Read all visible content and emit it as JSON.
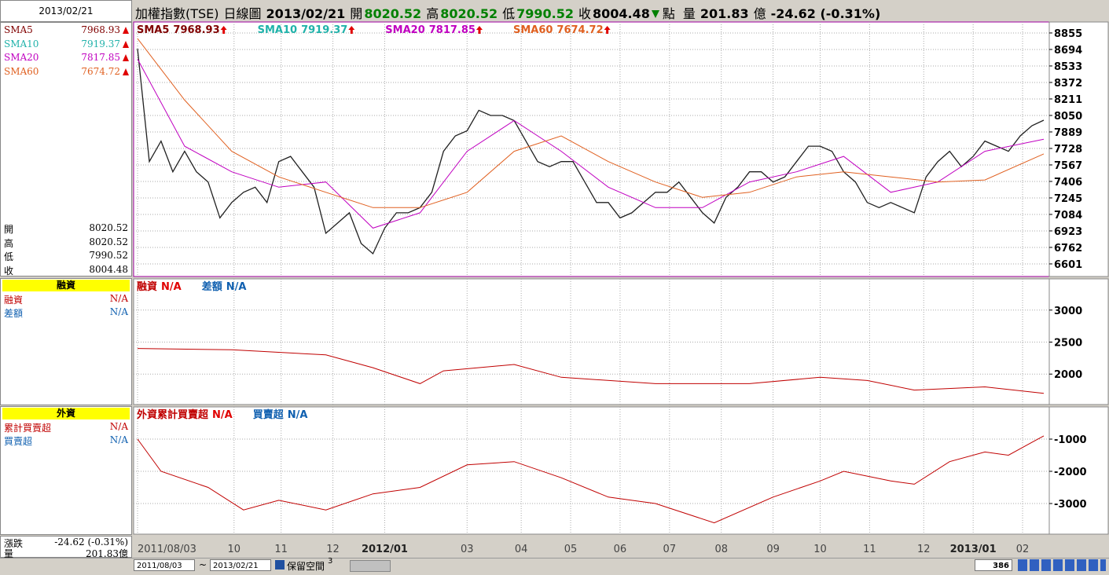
{
  "header": {
    "left_date": "2013/02/21",
    "title": "加權指數(TSE)",
    "period": "日線圖",
    "date": "2013/02/21",
    "fields": [
      {
        "label": "開",
        "value": "8020.52"
      },
      {
        "label": "高",
        "value": "8020.52"
      },
      {
        "label": "低",
        "value": "7990.52"
      },
      {
        "label": "收",
        "value": "8004.48"
      }
    ],
    "unit": "點",
    "volume_label": "量",
    "volume": "201.83",
    "volume_unit": "億",
    "change": "-24.62 (-0.31%)"
  },
  "left_panel": {
    "sma": [
      {
        "name": "SMA5",
        "value": "7968.93",
        "color": "#800000"
      },
      {
        "name": "SMA10",
        "value": "7919.37",
        "color": "#20b2aa"
      },
      {
        "name": "SMA20",
        "value": "7817.85",
        "color": "#c000c0"
      },
      {
        "name": "SMA60",
        "value": "7674.72",
        "color": "#e06020"
      }
    ],
    "ohlc": [
      {
        "label": "開",
        "value": "8020.52"
      },
      {
        "label": "高",
        "value": "8020.52"
      },
      {
        "label": "低",
        "value": "7990.52"
      },
      {
        "label": "收",
        "value": "8004.48"
      }
    ],
    "margin": {
      "title": "融資",
      "rows": [
        {
          "label": "融資",
          "value": "N/A",
          "color": "#c00000"
        },
        {
          "label": "差額",
          "value": "N/A",
          "color": "#1060b0"
        }
      ]
    },
    "foreign": {
      "title": "外資",
      "rows": [
        {
          "label": "累計買賣超",
          "value": "N/A",
          "color": "#c00000"
        },
        {
          "label": "買賣超",
          "value": "N/A",
          "color": "#1060b0"
        }
      ]
    },
    "bottom": [
      {
        "label": "漲跌",
        "value": "-24.62 (-0.31%)"
      },
      {
        "label": "量",
        "value": "201.83億"
      }
    ]
  },
  "toolbar": {
    "from": "2011/08/03",
    "sep": "~",
    "to": "2013/02/21",
    "keep_label": "保留空間",
    "keep_value": "3",
    "count": "386"
  },
  "chart_data": [
    {
      "type": "line",
      "ylim": [
        6478,
        8962
      ],
      "yticks": [
        6601,
        6762,
        6923,
        7084,
        7245,
        7406,
        7567,
        7728,
        7889,
        8050,
        8211,
        8372,
        8533,
        8694,
        8855
      ],
      "xlim": [
        0,
        385
      ],
      "xticks": [
        {
          "value": 0,
          "label": "2011/08/03"
        },
        {
          "value": 41,
          "label": "10"
        },
        {
          "value": 61,
          "label": "11"
        },
        {
          "value": 83,
          "label": "12"
        },
        {
          "value": 105,
          "label": "2012/01"
        },
        {
          "value": 140,
          "label": "03"
        },
        {
          "value": 163,
          "label": "04"
        },
        {
          "value": 184,
          "label": "05"
        },
        {
          "value": 205,
          "label": "06"
        },
        {
          "value": 226,
          "label": "07"
        },
        {
          "value": 248,
          "label": "08"
        },
        {
          "value": 270,
          "label": "09"
        },
        {
          "value": 290,
          "label": "10"
        },
        {
          "value": 311,
          "label": "11"
        },
        {
          "value": 334,
          "label": "12"
        },
        {
          "value": 355,
          "label": "2013/01"
        },
        {
          "value": 376,
          "label": "02"
        }
      ],
      "grid": true,
      "close": {
        "color": "#202020",
        "x": [
          0,
          5,
          10,
          15,
          20,
          25,
          30,
          35,
          40,
          45,
          50,
          55,
          60,
          65,
          70,
          75,
          80,
          85,
          90,
          95,
          100,
          105,
          110,
          115,
          120,
          125,
          130,
          135,
          140,
          145,
          150,
          155,
          160,
          165,
          170,
          175,
          180,
          185,
          190,
          195,
          200,
          205,
          210,
          215,
          220,
          225,
          230,
          235,
          240,
          245,
          250,
          255,
          260,
          265,
          270,
          275,
          280,
          285,
          290,
          295,
          300,
          305,
          310,
          315,
          320,
          325,
          330,
          335,
          340,
          345,
          350,
          355,
          360,
          365,
          370,
          375,
          380,
          385
        ],
        "values": [
          8700,
          7600,
          7800,
          7500,
          7700,
          7500,
          7400,
          7050,
          7200,
          7300,
          7350,
          7200,
          7600,
          7650,
          7500,
          7350,
          6900,
          7000,
          7100,
          6800,
          6700,
          6950,
          7100,
          7100,
          7150,
          7300,
          7700,
          7850,
          7900,
          8100,
          8050,
          8050,
          8000,
          7800,
          7600,
          7550,
          7600,
          7600,
          7400,
          7200,
          7200,
          7050,
          7100,
          7200,
          7300,
          7300,
          7400,
          7250,
          7100,
          7000,
          7250,
          7350,
          7500,
          7500,
          7400,
          7450,
          7600,
          7750,
          7750,
          7700,
          7500,
          7400,
          7200,
          7150,
          7200,
          7150,
          7100,
          7450,
          7600,
          7700,
          7550,
          7650,
          7800,
          7750,
          7700,
          7850,
          7950,
          8004
        ]
      },
      "series": [
        {
          "name": "SMA5",
          "value_label": "7968.93",
          "color": "#800000"
        },
        {
          "name": "SMA10",
          "value_label": "7919.37",
          "color": "#20b2aa"
        },
        {
          "name": "SMA20",
          "value_label": "7817.85",
          "color": "#c000c0",
          "x": [
            0,
            20,
            40,
            60,
            80,
            100,
            120,
            140,
            160,
            180,
            200,
            220,
            240,
            260,
            280,
            300,
            320,
            340,
            360,
            385
          ],
          "values": [
            8600,
            7750,
            7500,
            7350,
            7400,
            6950,
            7100,
            7700,
            8000,
            7700,
            7350,
            7150,
            7150,
            7400,
            7500,
            7650,
            7300,
            7400,
            7700,
            7818
          ]
        },
        {
          "name": "SMA60",
          "value_label": "7674.72",
          "color": "#e06020",
          "x": [
            0,
            20,
            40,
            60,
            80,
            100,
            120,
            140,
            160,
            180,
            200,
            220,
            240,
            260,
            280,
            300,
            320,
            340,
            360,
            385
          ],
          "values": [
            8800,
            8200,
            7700,
            7450,
            7300,
            7150,
            7150,
            7300,
            7700,
            7850,
            7600,
            7400,
            7250,
            7300,
            7450,
            7500,
            7450,
            7400,
            7420,
            7675
          ]
        }
      ]
    },
    {
      "type": "line",
      "ylim": [
        1524,
        3488
      ],
      "yticks": [
        2000,
        2500,
        3000
      ],
      "xlim": [
        0,
        385
      ],
      "series": [
        {
          "name": "融資",
          "value_label": "N/A",
          "color": "#c00000",
          "x": [
            0,
            40,
            80,
            100,
            120,
            130,
            160,
            180,
            220,
            260,
            290,
            310,
            330,
            360,
            385
          ],
          "values": [
            2400,
            2380,
            2300,
            2100,
            1850,
            2050,
            2150,
            1950,
            1850,
            1850,
            1950,
            1900,
            1750,
            1800,
            1700
          ]
        },
        {
          "name": "差額",
          "value_label": "N/A",
          "color": "#1060b0"
        }
      ]
    },
    {
      "type": "line",
      "ylim": [
        -3951,
        0
      ],
      "yticks": [
        -3000,
        -2000,
        -1000
      ],
      "xlim": [
        0,
        385
      ],
      "series": [
        {
          "name": "外資累計買賣超",
          "value_label": "N/A",
          "color": "#c00000",
          "x": [
            0,
            10,
            30,
            45,
            60,
            80,
            100,
            120,
            140,
            160,
            180,
            200,
            220,
            245,
            270,
            290,
            300,
            320,
            330,
            345,
            360,
            370,
            380,
            385
          ],
          "values": [
            -1000,
            -2000,
            -2500,
            -3200,
            -2900,
            -3200,
            -2700,
            -2500,
            -1800,
            -1700,
            -2200,
            -2800,
            -3000,
            -3600,
            -2800,
            -2300,
            -2000,
            -2300,
            -2400,
            -1700,
            -1400,
            -1500,
            -1100,
            -900
          ]
        },
        {
          "name": "買賣超",
          "value_label": "N/A",
          "color": "#1060b0"
        }
      ]
    }
  ]
}
